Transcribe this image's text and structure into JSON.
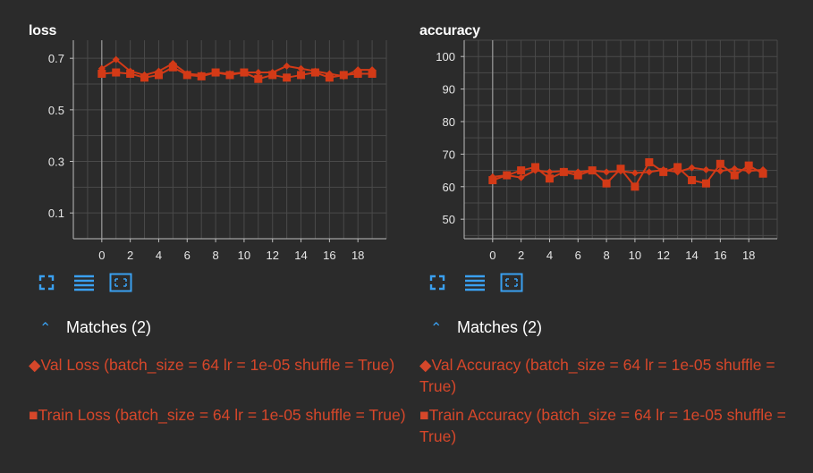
{
  "colors": {
    "series": "#d33a17",
    "axis": "#bdbdbd",
    "grid": "#4a4a4a",
    "accent": "#3aa0f0",
    "legend_text": "#d6472a"
  },
  "panels": [
    {
      "title": "loss",
      "toolbar_icons": [
        "fullscreen-icon",
        "list-icon",
        "fit-domain-icon"
      ],
      "matches_label": "Matches (2)",
      "legend": [
        {
          "marker": "◆",
          "text": "Val Loss (batch_size = 64 lr = 1e-05 shuffle = True)"
        },
        {
          "marker": "■",
          "text": "Train Loss (batch_size = 64 lr = 1e-05 shuffle = True)"
        }
      ]
    },
    {
      "title": "accuracy",
      "toolbar_icons": [
        "fullscreen-icon",
        "list-icon",
        "fit-domain-icon"
      ],
      "matches_label": "Matches (2)",
      "legend": [
        {
          "marker": "◆",
          "text": "Val Accuracy (batch_size = 64 lr = 1e-05 shuffle = True)"
        },
        {
          "marker": "■",
          "text": "Train Accuracy (batch_size = 64 lr = 1e-05 shuffle = True)"
        }
      ]
    }
  ],
  "chart_data": [
    {
      "type": "line",
      "title": "loss",
      "xlim": [
        -2,
        20
      ],
      "ylim": [
        0,
        0.77
      ],
      "x_ticks": [
        0,
        2,
        4,
        6,
        8,
        10,
        12,
        14,
        16,
        18
      ],
      "y_ticks": [
        0.1,
        0.3,
        0.5,
        0.7
      ],
      "grid": true,
      "x": [
        0,
        1,
        2,
        3,
        4,
        5,
        6,
        7,
        8,
        9,
        10,
        11,
        12,
        13,
        14,
        15,
        16,
        17,
        18,
        19
      ],
      "series": [
        {
          "name": "Val Loss",
          "marker": "diamond",
          "values": [
            0.66,
            0.695,
            0.65,
            0.635,
            0.65,
            0.68,
            0.64,
            0.635,
            0.645,
            0.64,
            0.645,
            0.645,
            0.645,
            0.67,
            0.66,
            0.65,
            0.64,
            0.63,
            0.655,
            0.655
          ]
        },
        {
          "name": "Train Loss",
          "marker": "square",
          "values": [
            0.64,
            0.645,
            0.64,
            0.625,
            0.635,
            0.665,
            0.635,
            0.63,
            0.645,
            0.635,
            0.645,
            0.62,
            0.635,
            0.625,
            0.635,
            0.645,
            0.625,
            0.635,
            0.64,
            0.64
          ]
        }
      ]
    },
    {
      "type": "line",
      "title": "accuracy",
      "xlim": [
        -2,
        20
      ],
      "ylim": [
        44,
        105
      ],
      "x_ticks": [
        0,
        2,
        4,
        6,
        8,
        10,
        12,
        14,
        16,
        18
      ],
      "y_ticks": [
        50,
        60,
        70,
        80,
        90,
        100
      ],
      "grid": true,
      "x": [
        0,
        1,
        2,
        3,
        4,
        5,
        6,
        7,
        8,
        9,
        10,
        11,
        12,
        13,
        14,
        15,
        16,
        17,
        18,
        19
      ],
      "series": [
        {
          "name": "Val Accuracy",
          "marker": "diamond",
          "values": [
            63.0,
            63.5,
            62.8,
            65.0,
            64.5,
            64.8,
            64.5,
            65.0,
            64.5,
            64.8,
            64.2,
            64.5,
            65.2,
            64.5,
            65.8,
            65.2,
            64.8,
            65.5,
            64.8,
            65.2
          ]
        },
        {
          "name": "Train Accuracy",
          "marker": "square",
          "values": [
            62.0,
            63.5,
            65.0,
            66.0,
            62.5,
            64.5,
            63.5,
            65.0,
            61.0,
            65.5,
            60.0,
            67.5,
            64.5,
            66.0,
            62.0,
            61.0,
            67.0,
            63.5,
            66.5,
            64.0
          ]
        }
      ]
    }
  ]
}
